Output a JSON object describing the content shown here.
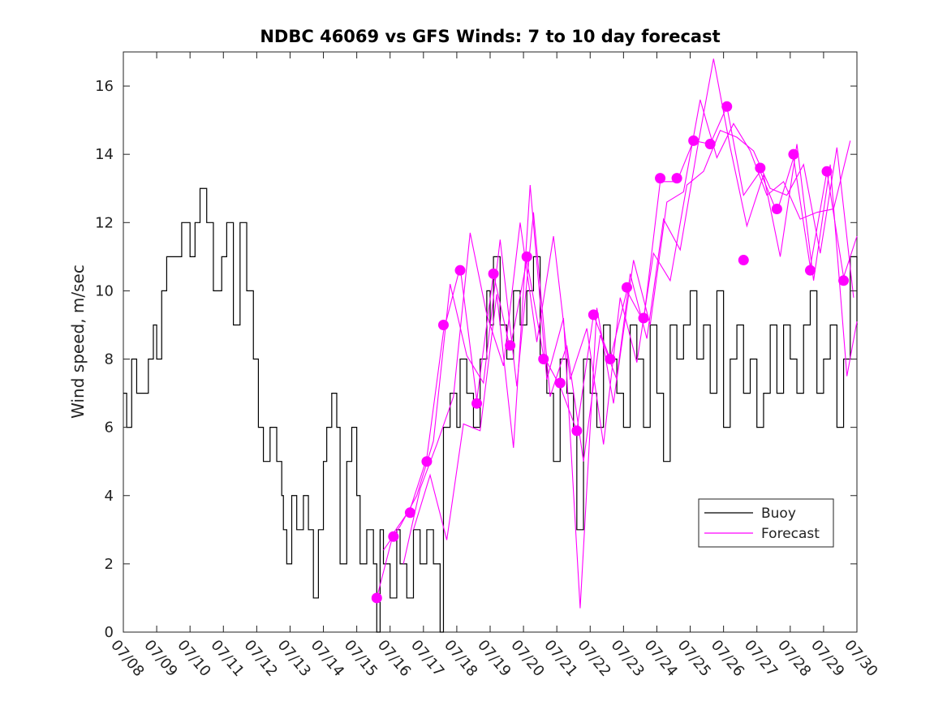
{
  "colors": {
    "buoy": "#000000",
    "forecast": "#ff00ff",
    "axis": "#222222",
    "background": "#ffffff"
  },
  "chart_data": {
    "type": "line",
    "title": "NDBC 46069 vs GFS Winds: 7 to 10 day forecast",
    "xlabel": "",
    "ylabel": "Wind speed, m/sec",
    "xlim": [
      "07/08",
      "07/30"
    ],
    "ylim": [
      0,
      17
    ],
    "grid": false,
    "legend_position": "lower-right",
    "x_tick_labels": [
      "07/08",
      "07/09",
      "07/10",
      "07/11",
      "07/12",
      "07/13",
      "07/14",
      "07/15",
      "07/16",
      "07/17",
      "07/18",
      "07/19",
      "07/20",
      "07/21",
      "07/22",
      "07/23",
      "07/24",
      "07/25",
      "07/26",
      "07/27",
      "07/28",
      "07/29",
      "07/30"
    ],
    "y_ticks": [
      0,
      2,
      4,
      6,
      8,
      10,
      12,
      14,
      16
    ],
    "legend": [
      "Buoy",
      "Forecast"
    ],
    "buoy": {
      "name": "Buoy",
      "x_day_of_july": [
        8.0,
        8.1,
        8.25,
        8.4,
        8.6,
        8.75,
        8.9,
        9.0,
        9.15,
        9.3,
        9.5,
        9.75,
        10.0,
        10.15,
        10.3,
        10.5,
        10.7,
        10.95,
        11.1,
        11.3,
        11.5,
        11.7,
        11.9,
        12.05,
        12.2,
        12.4,
        12.6,
        12.75,
        12.8,
        12.9,
        13.05,
        13.2,
        13.4,
        13.55,
        13.7,
        13.85,
        14.0,
        14.1,
        14.25,
        14.4,
        14.5,
        14.7,
        14.85,
        15.0,
        15.1,
        15.3,
        15.5,
        15.6,
        15.7,
        15.8,
        16.0,
        16.2,
        16.3,
        16.5,
        16.7,
        16.9,
        17.1,
        17.3,
        17.5,
        17.6,
        17.8,
        18.0,
        18.1,
        18.3,
        18.5,
        18.7,
        18.9,
        19.0,
        19.1,
        19.3,
        19.5,
        19.7,
        19.9,
        20.1,
        20.3,
        20.5,
        20.7,
        20.9,
        21.1,
        21.3,
        21.5,
        21.6,
        21.8,
        22.0,
        22.2,
        22.4,
        22.6,
        22.8,
        23.0,
        23.2,
        23.4,
        23.6,
        23.8,
        24.0,
        24.2,
        24.4,
        24.6,
        24.8,
        25.0,
        25.2,
        25.4,
        25.6,
        25.8,
        26.0,
        26.2,
        26.4,
        26.6,
        26.8,
        27.0,
        27.2,
        27.4,
        27.6,
        27.8,
        28.0,
        28.2,
        28.4,
        28.6,
        28.8,
        29.0,
        29.2,
        29.4,
        29.6,
        29.8,
        30.0
      ],
      "values": [
        7,
        6,
        8,
        7,
        7,
        8,
        9,
        8,
        10,
        11,
        11,
        12,
        11,
        12,
        13,
        12,
        10,
        11,
        12,
        9,
        12,
        10,
        8,
        6,
        5,
        6,
        5,
        4,
        3,
        2,
        4,
        3,
        4,
        3,
        1,
        3,
        5,
        6,
        7,
        6,
        2,
        5,
        6,
        4,
        2,
        3,
        2,
        0,
        3,
        2,
        1,
        3,
        2,
        1,
        3,
        2,
        3,
        2,
        0,
        6,
        7,
        6,
        8,
        7,
        6,
        8,
        10,
        9,
        11,
        9,
        8,
        10,
        9,
        10,
        11,
        8,
        7,
        5,
        8,
        7,
        6,
        3,
        8,
        7,
        6,
        9,
        8,
        7,
        6,
        9,
        8,
        6,
        9,
        7,
        5,
        9,
        8,
        9,
        10,
        8,
        9,
        7,
        10,
        6,
        8,
        9,
        7,
        8,
        6,
        7,
        9,
        7,
        9,
        8,
        7,
        9,
        10,
        7,
        8,
        9,
        6,
        8,
        11,
        9,
        10
      ],
      "note": "values approximate; buoy trace is noisy step-line"
    },
    "forecast_points": {
      "name": "Forecast",
      "x_day_of_july": [
        15.6,
        16.1,
        16.6,
        17.1,
        17.6,
        18.1,
        18.6,
        19.1,
        19.6,
        20.1,
        20.6,
        21.1,
        21.6,
        22.1,
        22.6,
        23.1,
        23.6,
        24.1,
        24.6,
        25.1,
        25.6,
        26.1,
        26.6,
        27.1,
        27.6,
        28.1,
        28.6,
        29.1,
        29.6
      ],
      "values": [
        1.0,
        2.8,
        3.5,
        5.0,
        9.0,
        10.6,
        6.7,
        10.5,
        8.4,
        11.0,
        8.0,
        7.3,
        5.9,
        9.3,
        8.0,
        10.1,
        9.2,
        13.3,
        13.3,
        14.4,
        14.3,
        15.4,
        10.9,
        13.6,
        12.4,
        14.0,
        10.6,
        13.5,
        10.3
      ]
    },
    "forecast_series": [
      {
        "x_day_of_july": [
          15.6,
          16.1,
          16.6,
          17.1,
          17.6,
          18.1,
          18.6,
          19.1,
          19.6,
          20.1,
          20.6,
          21.1,
          21.6,
          22.1,
          22.6,
          23.1,
          23.6,
          24.1,
          24.6,
          25.1,
          25.6,
          26.1,
          26.6,
          27.1,
          27.6,
          28.1,
          28.6,
          29.1,
          29.6,
          30.0
        ],
        "values": [
          1.0,
          2.9,
          3.6,
          5.1,
          8.8,
          10.7,
          6.8,
          10.5,
          8.3,
          10.9,
          8.1,
          7.2,
          5.9,
          9.3,
          8.0,
          10.0,
          9.1,
          13.2,
          13.2,
          14.4,
          14.3,
          15.4,
          12.8,
          13.5,
          12.3,
          13.9,
          10.7,
          13.5,
          10.4,
          11.6
        ]
      },
      {
        "x_day_of_july": [
          15.8,
          16.3,
          16.8,
          17.3,
          17.8,
          18.3,
          18.8,
          19.3,
          19.8,
          20.3,
          20.8,
          21.3,
          21.8,
          22.3,
          22.8,
          23.3,
          23.8,
          24.3,
          24.8,
          25.3,
          25.8,
          26.3,
          26.8,
          27.3,
          27.8,
          28.3,
          28.8,
          29.3,
          29.8
        ],
        "values": [
          2.4,
          3.1,
          4.0,
          5.6,
          10.2,
          8.1,
          7.3,
          11.5,
          7.2,
          12.3,
          6.9,
          8.4,
          5.0,
          8.7,
          7.4,
          10.9,
          9.0,
          12.6,
          12.9,
          15.6,
          13.9,
          14.9,
          14.1,
          12.8,
          13.2,
          12.1,
          12.3,
          12.4,
          14.4
        ]
      },
      {
        "x_day_of_july": [
          16.4,
          16.9,
          17.4,
          17.9,
          18.4,
          18.9,
          19.4,
          19.9,
          20.4,
          20.9,
          21.4,
          21.9,
          22.4,
          22.9,
          23.4,
          23.9,
          24.4,
          24.9,
          25.4,
          25.9,
          26.4,
          26.9,
          27.4,
          27.9,
          28.4,
          28.9,
          29.4,
          29.9
        ],
        "values": [
          2.0,
          4.2,
          5.5,
          6.9,
          11.7,
          9.3,
          7.8,
          12.0,
          8.5,
          11.6,
          7.4,
          8.9,
          5.5,
          9.8,
          7.9,
          11.1,
          10.3,
          13.1,
          13.5,
          14.7,
          14.5,
          14.1,
          13.0,
          12.8,
          13.7,
          11.1,
          14.2,
          9.8
        ]
      },
      {
        "x_day_of_july": [
          16.7,
          17.2,
          17.7,
          18.2,
          18.7,
          19.2,
          19.7,
          20.2,
          20.7,
          21.2,
          21.7,
          22.2,
          22.7,
          23.2,
          23.7,
          24.2,
          24.7,
          25.2,
          25.7,
          26.2,
          26.7,
          27.2,
          27.7,
          28.2,
          28.7,
          29.2,
          29.7,
          30.0
        ],
        "values": [
          3.0,
          4.6,
          2.7,
          6.1,
          5.9,
          9.9,
          5.4,
          13.1,
          7.4,
          9.2,
          0.7,
          9.5,
          6.7,
          10.5,
          8.6,
          12.1,
          11.2,
          14.1,
          16.8,
          14.2,
          11.9,
          13.4,
          11.0,
          14.3,
          10.3,
          13.7,
          7.5,
          9.1
        ]
      }
    ]
  }
}
